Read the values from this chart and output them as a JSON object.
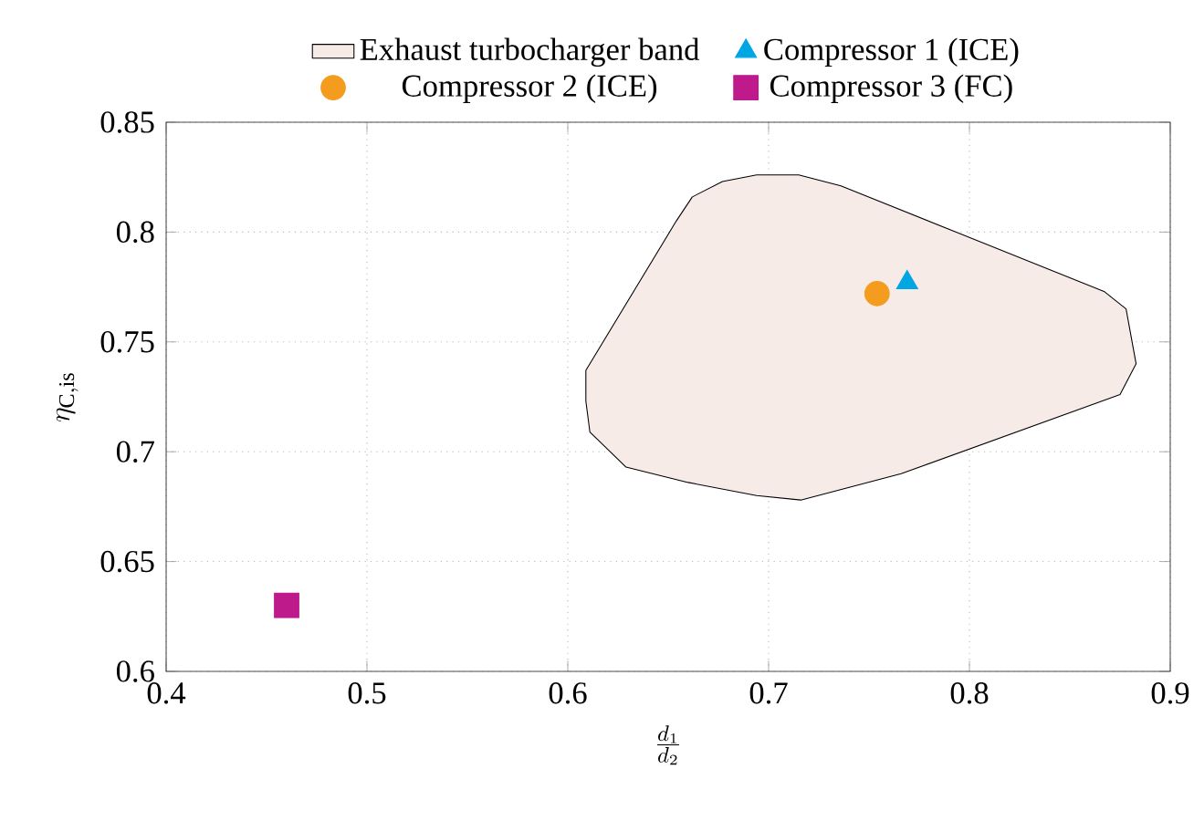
{
  "chart_data": {
    "type": "scatter",
    "xlabel": "\\frac{d_1}{d_2}",
    "ylabel": "\\eta_{\\mathrm{C,is}}",
    "xlim": [
      0.4,
      0.9
    ],
    "xticks": [
      0.4,
      0.5,
      0.6,
      0.7,
      0.8,
      0.9
    ],
    "ylim": [
      0.6,
      0.85
    ],
    "yticks": [
      0.6,
      0.65,
      0.7,
      0.75,
      0.8,
      0.85
    ],
    "grid": true,
    "legend": "top",
    "series": [
      {
        "name": "Exhaust turbocharger band",
        "type": "area",
        "color": "#f7ebe8",
        "x": [
          0.609,
          0.654,
          0.662,
          0.677,
          0.694,
          0.715,
          0.736,
          0.867,
          0.878,
          0.883,
          0.875,
          0.766,
          0.716,
          0.694,
          0.66,
          0.629,
          0.611,
          0.609
        ],
        "values": [
          0.737,
          0.805,
          0.816,
          0.823,
          0.826,
          0.826,
          0.821,
          0.773,
          0.765,
          0.74,
          0.726,
          0.69,
          0.678,
          0.68,
          0.686,
          0.693,
          0.709,
          0.723
        ]
      },
      {
        "name": "Compressor 1 (ICE)",
        "marker": "triangle",
        "color": "#00a6e3",
        "x": [
          0.769
        ],
        "values": [
          0.777
        ]
      },
      {
        "name": "Compressor 2 (ICE)",
        "marker": "circle",
        "color": "#f39c1e",
        "x": [
          0.754
        ],
        "values": [
          0.772
        ]
      },
      {
        "name": "Compressor 3 (FC)",
        "marker": "square",
        "color": "#be1a8c",
        "x": [
          0.46
        ],
        "values": [
          0.63
        ]
      }
    ]
  }
}
